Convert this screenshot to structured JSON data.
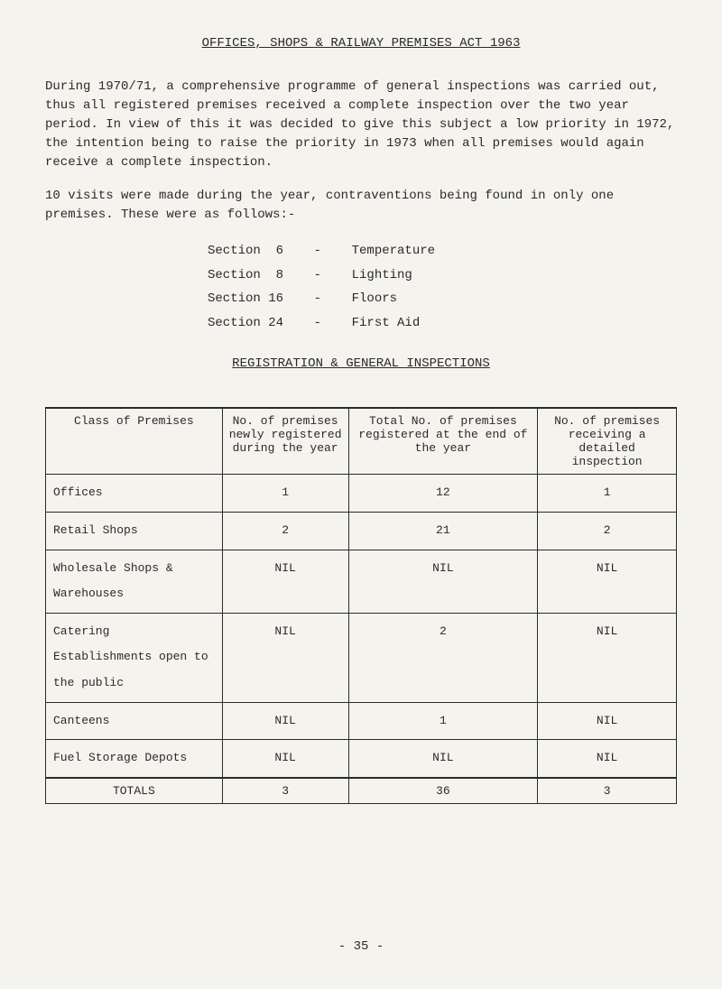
{
  "title": "OFFICES, SHOPS & RAILWAY PREMISES ACT 1963",
  "para1": "During 1970/71, a comprehensive programme of general inspections was carried out, thus all registered premises received a complete inspection over the two year period.  In view of this it was decided to give this subject a low priority in 1972, the intention being to raise the priority in 1973 when all premises would again receive a complete inspection.",
  "para2": "10 visits were made during the year, contraventions being found in only one premises.  These were as follows:-",
  "sections": [
    "Section  6    -    Temperature",
    "Section  8    -    Lighting",
    "Section 16    -    Floors",
    "Section 24    -    First Aid"
  ],
  "subtitle": "REGISTRATION & GENERAL INSPECTIONS",
  "table": {
    "headers": [
      "Class of Premises",
      "No. of premises newly registered during the year",
      "Total No. of premises registered at the end of the year",
      "No. of premises receiving a detailed inspection"
    ],
    "rows": [
      [
        "Offices",
        "1",
        "12",
        "1"
      ],
      [
        "Retail Shops",
        "2",
        "21",
        "2"
      ],
      [
        "Wholesale Shops & Warehouses",
        "NIL",
        "NIL",
        "NIL"
      ],
      [
        "Catering Establishments open to the public",
        "NIL",
        "2",
        "NIL"
      ],
      [
        "Canteens",
        "NIL",
        "1",
        "NIL"
      ],
      [
        "Fuel Storage Depots",
        "NIL",
        "NIL",
        "NIL"
      ]
    ],
    "totals": [
      "TOTALS",
      "3",
      "36",
      "3"
    ]
  },
  "pageNum": "- 35 -"
}
